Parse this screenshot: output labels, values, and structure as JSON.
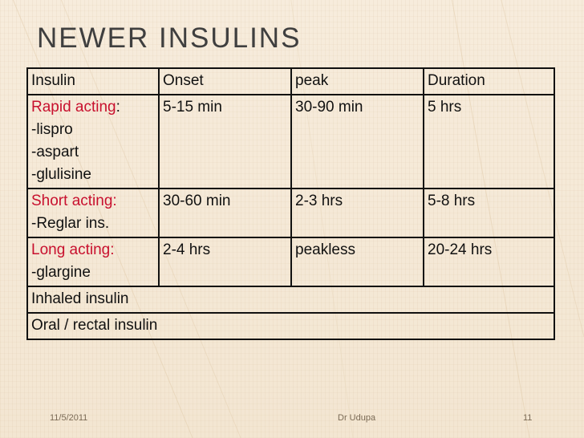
{
  "slide": {
    "title": "NEWER INSULINS",
    "header": [
      "Insulin",
      "Onset",
      "peak",
      "Duration"
    ],
    "rows": [
      {
        "category": "Rapid acting",
        "category_suffix": ":",
        "items": [
          "-lispro",
          "-aspart",
          "-glulisine"
        ],
        "onset": "5-15 min",
        "peak": "30-90 min",
        "duration": "5 hrs"
      },
      {
        "category": "Short acting:",
        "items": [
          "-Reglar ins."
        ],
        "onset": "30-60 min",
        "peak": "2-3 hrs",
        "duration": "5-8 hrs"
      },
      {
        "category": "Long acting:",
        "items": [
          "-glargine"
        ],
        "onset": "2-4 hrs",
        "peak": "peakless",
        "duration": "20-24 hrs"
      }
    ],
    "full_rows": [
      "Inhaled insulin",
      "Oral / rectal insulin"
    ],
    "footer": {
      "date": "11/5/2011",
      "author": "Dr Udupa",
      "page": "11"
    }
  },
  "colors": {
    "category_text": "#c8102e",
    "table_border": "#111111",
    "background": "#f5ead8",
    "title_text": "#3f3f3f"
  }
}
